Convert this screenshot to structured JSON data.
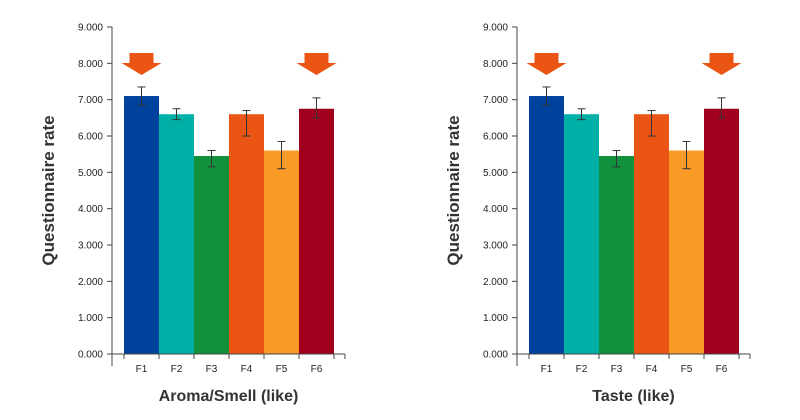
{
  "chart_data": [
    {
      "type": "bar",
      "title": "",
      "xlabel": "Aroma/Smell (like)",
      "ylabel": "Questionnaire rate",
      "ylim": [
        0,
        9
      ],
      "yticks": [
        "0.000",
        "1.000",
        "2.000",
        "3.000",
        "4.000",
        "5.000",
        "6.000",
        "7.000",
        "8.000",
        "9.000"
      ],
      "categories": [
        "F1",
        "F2",
        "F3",
        "F4",
        "F5",
        "F6"
      ],
      "values": [
        7.1,
        6.6,
        5.45,
        6.6,
        5.6,
        6.75
      ],
      "errors": [
        [
          6.85,
          7.35
        ],
        [
          6.45,
          6.75
        ],
        [
          5.15,
          5.6
        ],
        [
          6.0,
          6.7
        ],
        [
          5.1,
          5.85
        ],
        [
          6.5,
          7.05
        ]
      ],
      "colors": [
        "#00439c",
        "#00b0a7",
        "#11913b",
        "#ea5414",
        "#f89a25",
        "#a0001d"
      ],
      "highlighted": [
        "F1",
        "F6"
      ],
      "highlight_color": "#ea5514",
      "grid": false
    },
    {
      "type": "bar",
      "title": "",
      "xlabel": "Taste (like)",
      "ylabel": "Questionnaire rate",
      "ylim": [
        0,
        9
      ],
      "yticks": [
        "0.000",
        "1.000",
        "2.000",
        "3.000",
        "4.000",
        "5.000",
        "6.000",
        "7.000",
        "8.000",
        "9.000"
      ],
      "categories": [
        "F1",
        "F2",
        "F3",
        "F4",
        "F5",
        "F6"
      ],
      "values": [
        7.1,
        6.6,
        5.45,
        6.6,
        5.6,
        6.75
      ],
      "errors": [
        [
          6.85,
          7.35
        ],
        [
          6.45,
          6.75
        ],
        [
          5.15,
          5.6
        ],
        [
          6.0,
          6.7
        ],
        [
          5.1,
          5.85
        ],
        [
          6.5,
          7.05
        ]
      ],
      "colors": [
        "#00439c",
        "#00b0a7",
        "#11913b",
        "#ea5414",
        "#f89a25",
        "#a0001d"
      ],
      "highlighted": [
        "F1",
        "F6"
      ],
      "highlight_color": "#ea5514",
      "grid": false
    }
  ]
}
